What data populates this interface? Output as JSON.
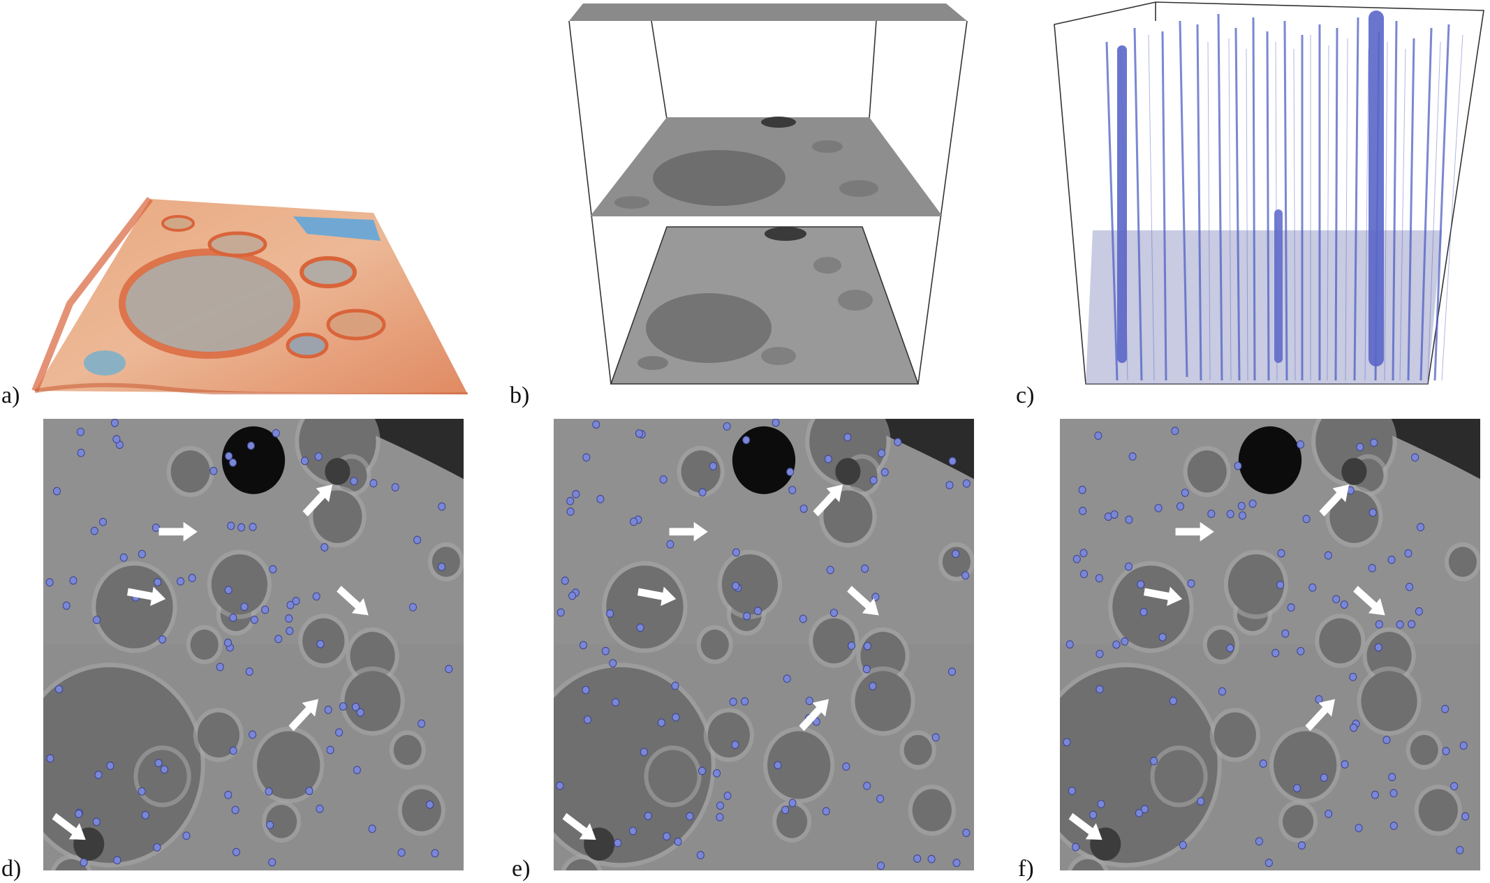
{
  "figure": {
    "panels": [
      {
        "id": "a",
        "label": "a)"
      },
      {
        "id": "b",
        "label": "b)"
      },
      {
        "id": "c",
        "label": "c)"
      },
      {
        "id": "d",
        "label": "d)"
      },
      {
        "id": "e",
        "label": "e)"
      },
      {
        "id": "f",
        "label": "f)"
      }
    ]
  },
  "colors": {
    "terrain_orange": "#e8825a",
    "terrain_tan": "#e9b48f",
    "terrain_blue": "#5aa6de",
    "crater_gray": "#9a9a9a",
    "tube_blue": "#4f5fc4",
    "marker_blue": "#7a86d6",
    "arrow_white": "#ffffff"
  }
}
